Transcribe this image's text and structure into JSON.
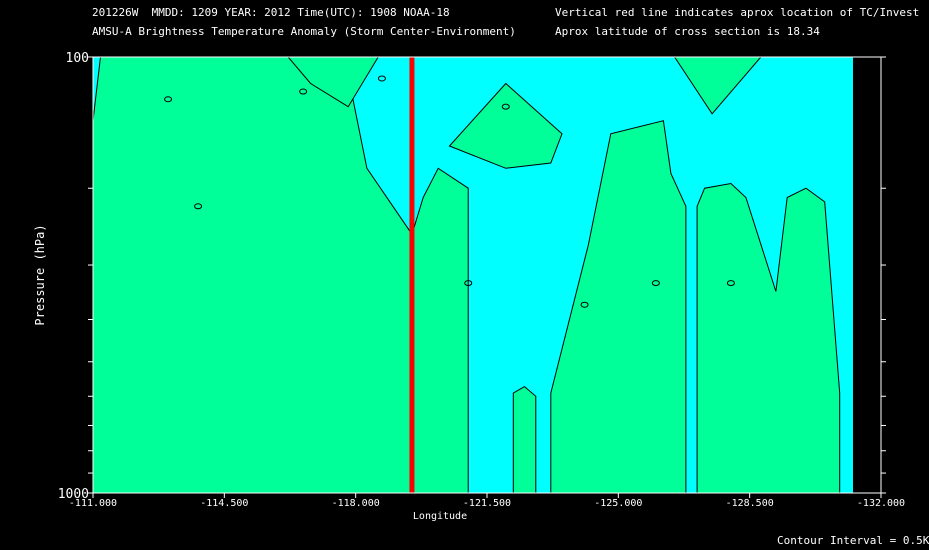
{
  "header": {
    "line1": "201226W  MMDD: 1209 YEAR: 2012 Time(UTC): 1908 NOAA-18",
    "line2": "AMSU-A Brightness Temperature Anomaly (Storm Center-Environment)",
    "line3": "Vertical red line indicates aprox location of TC/Invest",
    "line4": "Aprox latitude of cross section is 18.34"
  },
  "footer": {
    "contour_interval": "Contour Interval = 0.5K"
  },
  "colors": {
    "cool": "#00ffff",
    "warm": "#00ff99",
    "marker": "#ff0000",
    "background": "#000000"
  },
  "chart_data": {
    "type": "heatmap",
    "xlabel": "Longitude",
    "ylabel": "Pressure (hPa)",
    "x_ticks": [
      "-111.000",
      "-114.500",
      "-118.000",
      "-121.500",
      "-125.000",
      "-128.500",
      "-132.000"
    ],
    "x_tick_values": [
      -111.0,
      -114.5,
      -118.0,
      -121.5,
      -125.0,
      -128.5,
      -132.0
    ],
    "y_ticks": [
      "100",
      "1000"
    ],
    "xlim": [
      -111.0,
      -132.0
    ],
    "ylim": [
      100,
      1000
    ],
    "y_scale": "log",
    "storm_longitude": -119.5,
    "contour_interval_K": 0.5,
    "contour_label": "0",
    "warm_regions": [
      {
        "name": "west-upper",
        "points": [
          [
            -111.0,
            140
          ],
          [
            -111.2,
            100
          ],
          [
            -117.7,
            100
          ],
          [
            -118.3,
            180
          ],
          [
            -119.5,
            255
          ],
          [
            -119.5,
            1000
          ],
          [
            -111.0,
            1000
          ]
        ]
      },
      {
        "name": "rise-1",
        "points": [
          [
            -119.5,
            255
          ],
          [
            -119.8,
            210
          ],
          [
            -120.2,
            180
          ],
          [
            -121.0,
            200
          ],
          [
            -121.0,
            1000
          ],
          [
            -119.5,
            1000
          ]
        ]
      },
      {
        "name": "narrow-band",
        "points": [
          [
            -122.2,
            590
          ],
          [
            -122.5,
            570
          ],
          [
            -122.8,
            600
          ],
          [
            -122.8,
            1000
          ],
          [
            -122.2,
            1000
          ]
        ]
      },
      {
        "name": "rise-2",
        "points": [
          [
            -123.2,
            590
          ],
          [
            -124.2,
            270
          ],
          [
            -124.8,
            150
          ],
          [
            -126.2,
            140
          ],
          [
            -126.4,
            185
          ],
          [
            -126.8,
            220
          ],
          [
            -126.8,
            1000
          ],
          [
            -123.2,
            1000
          ]
        ]
      },
      {
        "name": "rise-3",
        "points": [
          [
            -127.1,
            220
          ],
          [
            -127.3,
            200
          ],
          [
            -128.0,
            195
          ],
          [
            -128.4,
            210
          ],
          [
            -129.2,
            345
          ],
          [
            -129.5,
            210
          ],
          [
            -130.0,
            200
          ],
          [
            -130.5,
            215
          ],
          [
            -130.9,
            590
          ],
          [
            -130.9,
            1000
          ],
          [
            -127.1,
            1000
          ]
        ]
      },
      {
        "name": "top-right",
        "points": [
          [
            -126.5,
            100
          ],
          [
            -128.8,
            100
          ],
          [
            -127.5,
            135
          ]
        ]
      },
      {
        "name": "top-mid",
        "points": [
          [
            -120.5,
            160
          ],
          [
            -122.0,
            115
          ],
          [
            -123.5,
            150
          ],
          [
            -123.2,
            175
          ],
          [
            -122.0,
            180
          ]
        ]
      },
      {
        "name": "dry-pocket",
        "points": [
          [
            -116.2,
            100
          ],
          [
            -118.6,
            100
          ],
          [
            -117.8,
            130
          ],
          [
            -116.8,
            115
          ]
        ]
      }
    ]
  }
}
